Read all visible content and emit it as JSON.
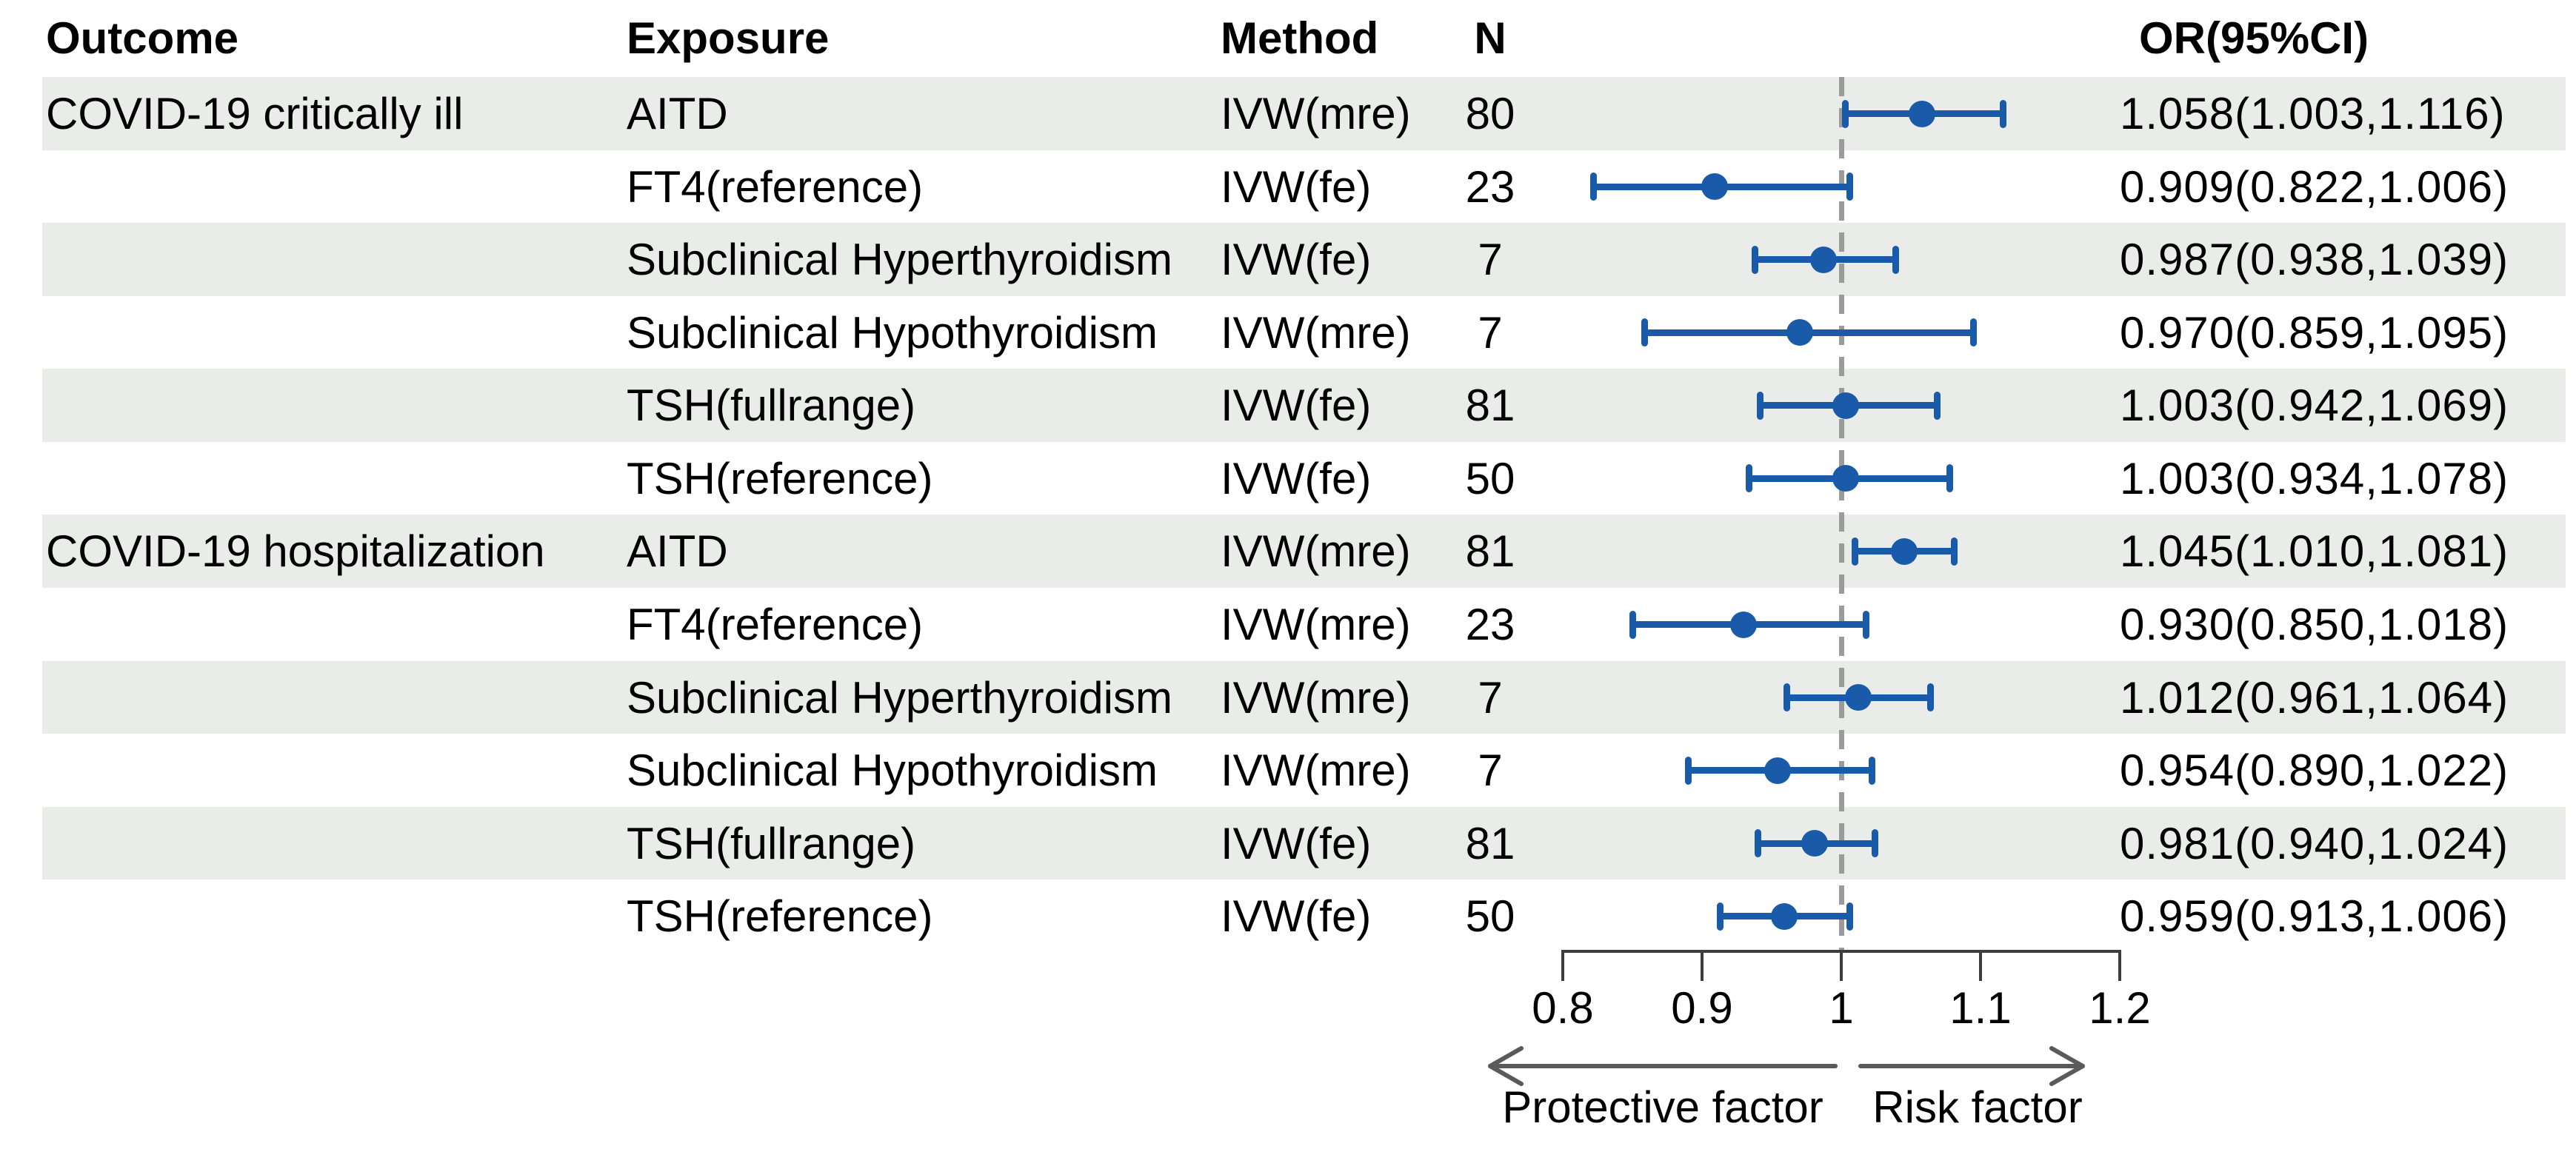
{
  "header": {
    "outcome": "Outcome",
    "exposure": "Exposure",
    "method": "Method",
    "n": "N",
    "or_ci": "OR(95%CI)"
  },
  "chart_data": {
    "type": "scatter",
    "subtype": "forest-plot",
    "title": "",
    "xlabel": "",
    "ylabel": "",
    "xlim": [
      0.8,
      1.2
    ],
    "x_ticks": [
      0.8,
      0.9,
      1.0,
      1.1,
      1.2
    ],
    "x_tick_labels": [
      "0.8",
      "0.9",
      "1",
      "1.1",
      "1.2"
    ],
    "reference_line_x": 1,
    "grid": false,
    "legend_position": "none",
    "rows": [
      {
        "outcome": "COVID-19 critically ill",
        "exposure": "AITD",
        "method": "IVW(mre)",
        "n": "80",
        "or": 1.058,
        "ci_low": 1.003,
        "ci_high": 1.116,
        "or_ci_text": "1.058(1.003,1.116)",
        "shaded": true
      },
      {
        "outcome": "",
        "exposure": "FT4(reference)",
        "method": "IVW(fe)",
        "n": "23",
        "or": 0.909,
        "ci_low": 0.822,
        "ci_high": 1.006,
        "or_ci_text": "0.909(0.822,1.006)",
        "shaded": false
      },
      {
        "outcome": "",
        "exposure": "Subclinical Hyperthyroidism",
        "method": "IVW(fe)",
        "n": "7",
        "or": 0.987,
        "ci_low": 0.938,
        "ci_high": 1.039,
        "or_ci_text": "0.987(0.938,1.039)",
        "shaded": true
      },
      {
        "outcome": "",
        "exposure": "Subclinical Hypothyroidism",
        "method": "IVW(mre)",
        "n": "7",
        "or": 0.97,
        "ci_low": 0.859,
        "ci_high": 1.095,
        "or_ci_text": "0.970(0.859,1.095)",
        "shaded": false
      },
      {
        "outcome": "",
        "exposure": "TSH(fullrange)",
        "method": "IVW(fe)",
        "n": "81",
        "or": 1.003,
        "ci_low": 0.942,
        "ci_high": 1.069,
        "or_ci_text": "1.003(0.942,1.069)",
        "shaded": true
      },
      {
        "outcome": "",
        "exposure": "TSH(reference)",
        "method": "IVW(fe)",
        "n": "50",
        "or": 1.003,
        "ci_low": 0.934,
        "ci_high": 1.078,
        "or_ci_text": "1.003(0.934,1.078)",
        "shaded": false
      },
      {
        "outcome": "COVID-19 hospitalization",
        "exposure": "AITD",
        "method": "IVW(mre)",
        "n": "81",
        "or": 1.045,
        "ci_low": 1.01,
        "ci_high": 1.081,
        "or_ci_text": "1.045(1.010,1.081)",
        "shaded": true
      },
      {
        "outcome": "",
        "exposure": "FT4(reference)",
        "method": "IVW(mre)",
        "n": "23",
        "or": 0.93,
        "ci_low": 0.85,
        "ci_high": 1.018,
        "or_ci_text": "0.930(0.850,1.018)",
        "shaded": false
      },
      {
        "outcome": "",
        "exposure": "Subclinical Hyperthyroidism",
        "method": "IVW(mre)",
        "n": "7",
        "or": 1.012,
        "ci_low": 0.961,
        "ci_high": 1.064,
        "or_ci_text": "1.012(0.961,1.064)",
        "shaded": true
      },
      {
        "outcome": "",
        "exposure": "Subclinical Hypothyroidism",
        "method": "IVW(mre)",
        "n": "7",
        "or": 0.954,
        "ci_low": 0.89,
        "ci_high": 1.022,
        "or_ci_text": "0.954(0.890,1.022)",
        "shaded": false
      },
      {
        "outcome": "",
        "exposure": "TSH(fullrange)",
        "method": "IVW(fe)",
        "n": "81",
        "or": 0.981,
        "ci_low": 0.94,
        "ci_high": 1.024,
        "or_ci_text": "0.981(0.940,1.024)",
        "shaded": true
      },
      {
        "outcome": "",
        "exposure": "TSH(reference)",
        "method": "IVW(fe)",
        "n": "50",
        "or": 0.959,
        "ci_low": 0.913,
        "ci_high": 1.006,
        "or_ci_text": "0.959(0.913,1.006)",
        "shaded": false
      }
    ],
    "annotations": {
      "protective": "Protective factor",
      "risk": "Risk factor"
    }
  },
  "colors": {
    "marker_blue": "#1a5ba9",
    "stripe": "#e9ece9",
    "reference_dash": "#9b9b9b",
    "axis_line": "#3d3d3d",
    "arrow": "#5a5a5a",
    "text": "#000000",
    "background": "#ffffff"
  }
}
